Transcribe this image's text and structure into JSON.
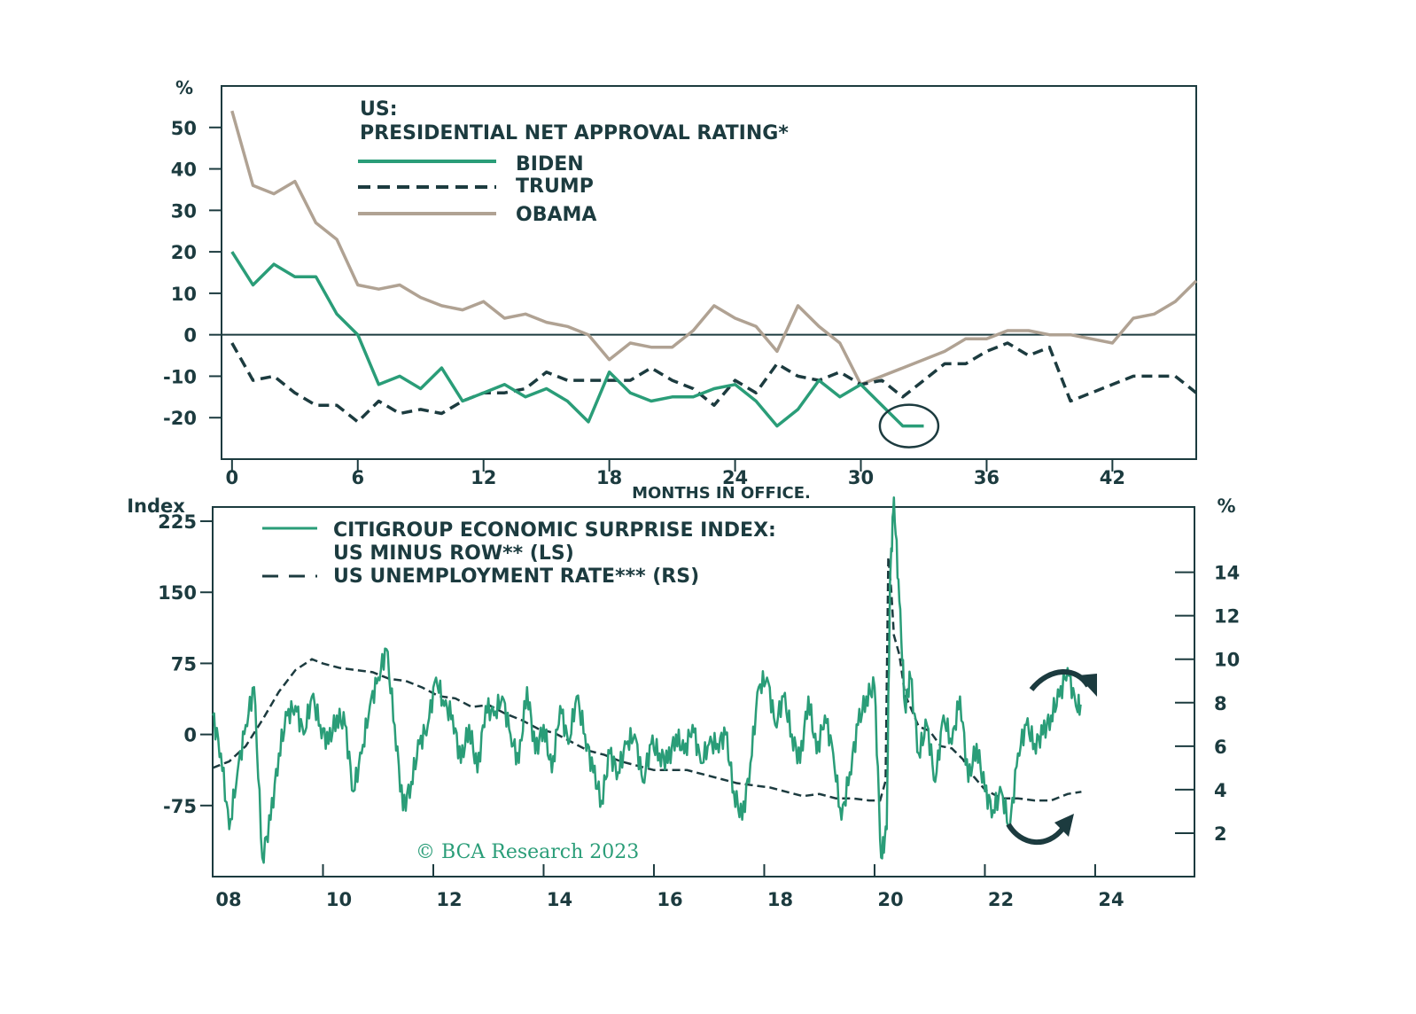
{
  "colors": {
    "biden": "#2a9d78",
    "trump": "#1c3b3f",
    "obama": "#b0a293",
    "axis": "#1c3b3f",
    "surprise": "#2a9d78",
    "unemployment": "#1c3b3f"
  },
  "watermark": "© BCA Research 2023",
  "chart_data": [
    {
      "type": "line",
      "title": "US:",
      "subtitle": "PRESIDENTIAL NET APPROVAL RATING*",
      "ylabel": "%",
      "xlabel": "MONTHS IN OFFICE.",
      "xlim": [
        -0.5,
        46
      ],
      "ylim": [
        -30,
        60
      ],
      "x_ticks": [
        0,
        6,
        12,
        18,
        24,
        30,
        36,
        42
      ],
      "x_tick_labels": [
        "0",
        "6",
        "12",
        "18",
        "24",
        "30",
        "36",
        "42"
      ],
      "y_ticks": [
        -20,
        -10,
        0,
        10,
        20,
        30,
        40,
        50
      ],
      "y_tick_labels": [
        "-20",
        "-10",
        "0",
        "10",
        "20",
        "30",
        "40",
        "50"
      ],
      "zero_line": true,
      "annotation": "circle around latest Biden reading (~month 32, -22)",
      "series": [
        {
          "name": "BIDEN",
          "style": "solid",
          "x": [
            0,
            1,
            2,
            3,
            4,
            5,
            6,
            7,
            8,
            9,
            10,
            11,
            12,
            13,
            14,
            15,
            16,
            17,
            18,
            19,
            20,
            21,
            22,
            23,
            24,
            25,
            26,
            27,
            28,
            29,
            30,
            31,
            32,
            33
          ],
          "values": [
            20,
            12,
            17,
            14,
            14,
            5,
            0,
            -12,
            -10,
            -13,
            -8,
            -16,
            -14,
            -12,
            -15,
            -13,
            -16,
            -21,
            -9,
            -14,
            -16,
            -15,
            -15,
            -13,
            -12,
            -16,
            -22,
            -18,
            -11,
            -15,
            -12,
            -17,
            -22,
            -22
          ]
        },
        {
          "name": "TRUMP",
          "style": "dashed",
          "x": [
            0,
            1,
            2,
            3,
            4,
            5,
            6,
            7,
            8,
            9,
            10,
            11,
            12,
            13,
            14,
            15,
            16,
            17,
            18,
            19,
            20,
            21,
            22,
            23,
            24,
            25,
            26,
            27,
            28,
            29,
            30,
            31,
            32,
            33,
            34,
            35,
            36,
            37,
            38,
            39,
            40,
            41,
            42,
            43,
            44,
            45,
            46
          ],
          "values": [
            -2,
            -11,
            -10,
            -14,
            -17,
            -17,
            -21,
            -16,
            -19,
            -18,
            -19,
            -16,
            -14,
            -14,
            -13,
            -9,
            -11,
            -11,
            -11,
            -11,
            -8,
            -11,
            -13,
            -17,
            -11,
            -14,
            -7,
            -10,
            -11,
            -9,
            -12,
            -11,
            -15,
            -11,
            -7,
            -7,
            -4,
            -2,
            -5,
            -3,
            -16,
            -14,
            -12,
            -10,
            -10,
            -10,
            -14
          ]
        },
        {
          "name": "OBAMA",
          "style": "solid",
          "x": [
            0,
            1,
            2,
            3,
            4,
            5,
            6,
            7,
            8,
            9,
            10,
            11,
            12,
            13,
            14,
            15,
            16,
            17,
            18,
            19,
            20,
            21,
            22,
            23,
            24,
            25,
            26,
            27,
            28,
            29,
            30,
            31,
            32,
            33,
            34,
            35,
            36,
            37,
            38,
            39,
            40,
            41,
            42,
            43,
            44,
            45,
            46
          ],
          "values": [
            54,
            36,
            34,
            37,
            27,
            23,
            12,
            11,
            12,
            9,
            7,
            6,
            8,
            4,
            5,
            3,
            2,
            0,
            -6,
            -2,
            -3,
            -3,
            1,
            7,
            4,
            2,
            -4,
            7,
            2,
            -2,
            -12,
            -10,
            -8,
            -6,
            -4,
            -1,
            -1,
            1,
            1,
            0,
            0,
            -1,
            -2,
            4,
            5,
            8,
            13
          ]
        }
      ]
    },
    {
      "type": "line",
      "title": "CITIGROUP ECONOMIC SURPRISE INDEX:",
      "subtitle": "US MINUS ROW** (LS)",
      "ylabel_left": "Index",
      "ylabel_right": "%",
      "xlim": [
        2008,
        2025.8
      ],
      "ylim_left": [
        -150,
        240
      ],
      "ylim_right": [
        0,
        17
      ],
      "x_ticks": [
        2008,
        2010,
        2012,
        2014,
        2016,
        2018,
        2020,
        2022,
        2024
      ],
      "x_tick_labels": [
        "08",
        "10",
        "12",
        "14",
        "16",
        "18",
        "20",
        "22",
        "24"
      ],
      "y_left_ticks": [
        -75,
        0,
        75,
        150,
        225
      ],
      "y_left_tick_labels": [
        "-75",
        "0",
        "75",
        "150",
        "225"
      ],
      "y_right_ticks": [
        2,
        4,
        6,
        8,
        10,
        12,
        14
      ],
      "y_right_tick_labels": [
        "2",
        "4",
        "6",
        "8",
        "10",
        "12",
        "14"
      ],
      "annotations": [
        "curved arrow pointing down near surprise index end",
        "curved arrow pointing up near unemployment end"
      ],
      "series": [
        {
          "name": "CITIGROUP ECONOMIC SURPRISE INDEX: US MINUS ROW** (LS)",
          "axis": "left",
          "style": "solid",
          "x": [
            2008.0,
            2008.15,
            2008.3,
            2008.45,
            2008.6,
            2008.75,
            2008.9,
            2009.05,
            2009.2,
            2009.35,
            2009.5,
            2009.65,
            2009.8,
            2009.95,
            2010.1,
            2010.25,
            2010.4,
            2010.55,
            2010.7,
            2010.85,
            2011.0,
            2011.15,
            2011.3,
            2011.45,
            2011.6,
            2011.75,
            2011.9,
            2012.05,
            2012.2,
            2012.35,
            2012.5,
            2012.65,
            2012.8,
            2012.95,
            2013.1,
            2013.25,
            2013.4,
            2013.55,
            2013.7,
            2013.85,
            2014.0,
            2014.15,
            2014.3,
            2014.45,
            2014.6,
            2014.75,
            2014.9,
            2015.05,
            2015.2,
            2015.35,
            2015.5,
            2015.65,
            2015.8,
            2015.95,
            2016.1,
            2016.25,
            2016.4,
            2016.55,
            2016.7,
            2016.85,
            2017.0,
            2017.15,
            2017.3,
            2017.45,
            2017.6,
            2017.75,
            2017.9,
            2018.05,
            2018.2,
            2018.35,
            2018.5,
            2018.65,
            2018.8,
            2018.95,
            2019.1,
            2019.25,
            2019.4,
            2019.55,
            2019.7,
            2019.85,
            2020.0,
            2020.12,
            2020.22,
            2020.28,
            2020.35,
            2020.45,
            2020.55,
            2020.65,
            2020.8,
            2020.95,
            2021.1,
            2021.25,
            2021.4,
            2021.55,
            2021.7,
            2021.85,
            2022.0,
            2022.15,
            2022.3,
            2022.45,
            2022.6,
            2022.75,
            2022.9,
            2023.05,
            2023.2,
            2023.35,
            2023.5,
            2023.65,
            2023.75
          ],
          "values": [
            20,
            -20,
            -100,
            -40,
            10,
            50,
            -130,
            -90,
            -20,
            20,
            30,
            0,
            40,
            10,
            -10,
            20,
            10,
            -60,
            -20,
            30,
            60,
            90,
            10,
            -80,
            -50,
            -10,
            10,
            60,
            30,
            20,
            -30,
            10,
            -40,
            30,
            20,
            40,
            0,
            -30,
            50,
            -20,
            10,
            -40,
            30,
            -10,
            40,
            0,
            -40,
            -70,
            -20,
            -40,
            -10,
            0,
            -50,
            -10,
            -20,
            -30,
            0,
            -20,
            10,
            -30,
            -10,
            -10,
            0,
            -60,
            -90,
            -30,
            50,
            60,
            10,
            40,
            0,
            -30,
            40,
            -20,
            20,
            -20,
            -90,
            -40,
            10,
            40,
            50,
            -130,
            -100,
            160,
            250,
            140,
            30,
            60,
            -20,
            10,
            -50,
            20,
            -10,
            40,
            -50,
            -10,
            -60,
            -80,
            -60,
            -100,
            -20,
            10,
            -10,
            0,
            20,
            40,
            70,
            30,
            30
          ]
        },
        {
          "name": "US UNEMPLOYMENT RATE*** (RS)",
          "axis": "right",
          "style": "dashed",
          "x": [
            2008.0,
            2008.3,
            2008.6,
            2008.9,
            2009.2,
            2009.5,
            2009.8,
            2010.0,
            2010.3,
            2010.6,
            2010.9,
            2011.2,
            2011.5,
            2011.8,
            2012.1,
            2012.4,
            2012.7,
            2013.0,
            2013.3,
            2013.6,
            2013.9,
            2014.2,
            2014.5,
            2014.8,
            2015.1,
            2015.4,
            2015.7,
            2016.0,
            2016.3,
            2016.6,
            2016.9,
            2017.2,
            2017.5,
            2017.8,
            2018.1,
            2018.4,
            2018.7,
            2019.0,
            2019.3,
            2019.6,
            2019.9,
            2020.1,
            2020.2,
            2020.25,
            2020.3,
            2020.35,
            2020.45,
            2020.55,
            2020.65,
            2020.8,
            2021.0,
            2021.2,
            2021.4,
            2021.6,
            2021.8,
            2022.0,
            2022.3,
            2022.6,
            2022.9,
            2023.2,
            2023.5,
            2023.75
          ],
          "values": [
            5.0,
            5.3,
            6.0,
            7.2,
            8.5,
            9.5,
            10.0,
            9.8,
            9.6,
            9.5,
            9.4,
            9.1,
            9.0,
            8.7,
            8.3,
            8.2,
            7.8,
            7.9,
            7.5,
            7.2,
            6.8,
            6.6,
            6.2,
            5.8,
            5.6,
            5.3,
            5.1,
            4.9,
            4.9,
            4.9,
            4.7,
            4.5,
            4.3,
            4.2,
            4.1,
            3.9,
            3.7,
            3.8,
            3.6,
            3.6,
            3.5,
            3.5,
            4.4,
            14.7,
            13.3,
            11.1,
            10.2,
            8.4,
            7.8,
            6.9,
            6.7,
            6.0,
            5.9,
            5.4,
            4.6,
            4.0,
            3.6,
            3.6,
            3.5,
            3.5,
            3.8,
            3.9
          ]
        }
      ]
    }
  ]
}
